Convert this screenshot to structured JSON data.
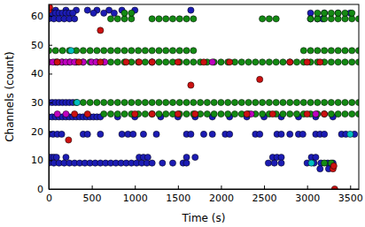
{
  "chart_data": {
    "type": "scatter",
    "x_label": "Time (s)",
    "y_label": "Channels (count)",
    "xlim": [
      0,
      3600
    ],
    "ylim": [
      0,
      64
    ],
    "xticks": [
      0,
      500,
      1000,
      1500,
      2000,
      2500,
      3000,
      3500
    ],
    "yticks": [
      0,
      10,
      20,
      30,
      40,
      50,
      60
    ],
    "grid": false,
    "series": [
      {
        "color": "#1c1cb4",
        "marker": "circle",
        "x": [
          0,
          80,
          200,
          320,
          450,
          560,
          700,
          850,
          1000,
          1650,
          0,
          40,
          80,
          120,
          160,
          200,
          240,
          280,
          520,
          640,
          760,
          3040,
          3200,
          3360,
          3500,
          0,
          60,
          120,
          180,
          240,
          300,
          3040,
          3120,
          3180,
          0,
          40,
          80,
          120,
          160,
          200,
          240,
          280,
          0,
          40,
          80,
          120,
          160,
          200,
          240,
          280,
          320,
          360,
          400,
          440,
          480,
          520,
          560,
          600,
          800,
          1000,
          1300,
          1500,
          1700,
          1900,
          2100,
          2300,
          2500,
          2700,
          2900,
          3100,
          3300,
          0,
          50,
          100,
          150,
          400,
          450,
          600,
          850,
          920,
          980,
          1100,
          1250,
          1600,
          1650,
          1800,
          1900,
          2050,
          2100,
          2400,
          2450,
          2650,
          2700,
          2800,
          2900,
          2950,
          3100,
          3150,
          3200,
          3400,
          3450,
          3550,
          0,
          30,
          60,
          90,
          200,
          1050,
          1100,
          1150,
          1600,
          1700,
          2600,
          2650,
          2700,
          3050,
          3100,
          0,
          60,
          120,
          180,
          240,
          300,
          360,
          420,
          480,
          540,
          600,
          660,
          720,
          780,
          840,
          900,
          960,
          1020,
          1080,
          1140,
          1200,
          1320,
          1440,
          1560,
          1600,
          2550,
          2620,
          2700,
          3000,
          3080,
          3160,
          3240,
          3300,
          3150,
          3250
        ],
        "values": [
          62,
          62,
          62,
          62,
          62,
          62,
          62,
          62,
          62,
          62,
          61,
          61,
          61,
          61,
          61,
          61,
          61,
          61,
          61,
          61,
          61,
          61,
          61,
          61,
          61,
          59,
          59,
          59,
          59,
          59,
          59,
          59,
          59,
          59,
          30,
          30,
          30,
          30,
          30,
          30,
          30,
          30,
          25,
          25,
          25,
          25,
          25,
          25,
          25,
          25,
          25,
          25,
          25,
          25,
          25,
          25,
          25,
          25,
          25,
          25,
          25,
          25,
          25,
          25,
          25,
          25,
          25,
          25,
          25,
          25,
          25,
          19,
          19,
          19,
          19,
          19,
          19,
          19,
          19,
          19,
          19,
          19,
          19,
          19,
          19,
          19,
          19,
          19,
          19,
          19,
          19,
          19,
          19,
          19,
          19,
          19,
          19,
          19,
          19,
          19,
          19,
          19,
          11,
          11,
          11,
          11,
          11,
          11,
          11,
          11,
          11,
          11,
          11,
          11,
          11,
          11,
          11,
          9,
          9,
          9,
          9,
          9,
          9,
          9,
          9,
          9,
          9,
          9,
          9,
          9,
          9,
          9,
          9,
          9,
          9,
          9,
          9,
          9,
          9,
          9,
          9,
          9,
          9,
          9,
          9,
          9,
          9,
          9,
          9,
          9,
          7,
          7
        ]
      },
      {
        "color": "#138a13",
        "marker": "circle",
        "x": [
          0,
          80,
          160,
          240,
          320,
          400,
          480,
          560,
          640,
          720,
          800,
          880,
          960,
          1040,
          1120,
          1200,
          1280,
          1360,
          1440,
          1520,
          1600,
          1680,
          1760,
          1840,
          1920,
          2000,
          2080,
          2160,
          2240,
          2320,
          2400,
          2480,
          2560,
          2640,
          2720,
          2800,
          2880,
          2960,
          3040,
          3120,
          3200,
          3280,
          3360,
          3440,
          3520,
          3600,
          320,
          400,
          480,
          560,
          640,
          720,
          800,
          880,
          960,
          1040,
          1120,
          1200,
          1280,
          1360,
          1440,
          1520,
          1600,
          1680,
          1760,
          1840,
          1920,
          2000,
          2080,
          2160,
          2240,
          2320,
          2400,
          2480,
          2560,
          2640,
          2720,
          2800,
          2880,
          2960,
          3040,
          3120,
          3200,
          3280,
          3360,
          3440,
          3520,
          3600,
          640,
          720,
          800,
          880,
          960,
          1040,
          1120,
          1200,
          1280,
          1360,
          1440,
          1520,
          1600,
          1680,
          1760,
          1840,
          1920,
          2000,
          2080,
          2160,
          2240,
          2320,
          2400,
          2480,
          2560,
          2640,
          2720,
          2800,
          2880,
          2960,
          3040,
          3120,
          3200,
          3280,
          3360,
          3440,
          3520,
          3600,
          0,
          80,
          160,
          240,
          320,
          400,
          480,
          560,
          640,
          720,
          800,
          880,
          960,
          1040,
          1120,
          1200,
          1280,
          1360,
          1440,
          1520,
          1600,
          1680,
          2960,
          3040,
          3120,
          3200,
          3280,
          3360,
          3440,
          3520,
          3600,
          720,
          800,
          880,
          960,
          1200,
          1280,
          1360,
          1440,
          1520,
          1600,
          1680,
          2480,
          2560,
          2640,
          3040,
          3120,
          3200,
          3280,
          3360,
          3440,
          3520,
          3600,
          880,
          960,
          3120,
          3200,
          3280,
          3360,
          3440,
          3520,
          3200,
          3280
        ],
        "values": [
          44,
          44,
          44,
          44,
          44,
          44,
          44,
          44,
          44,
          44,
          44,
          44,
          44,
          44,
          44,
          44,
          44,
          44,
          44,
          44,
          44,
          44,
          44,
          44,
          44,
          44,
          44,
          44,
          44,
          44,
          44,
          44,
          44,
          44,
          44,
          44,
          44,
          44,
          44,
          44,
          44,
          44,
          44,
          44,
          44,
          44,
          30,
          30,
          30,
          30,
          30,
          30,
          30,
          30,
          30,
          30,
          30,
          30,
          30,
          30,
          30,
          30,
          30,
          30,
          30,
          30,
          30,
          30,
          30,
          30,
          30,
          30,
          30,
          30,
          30,
          30,
          30,
          30,
          30,
          30,
          30,
          30,
          30,
          30,
          30,
          30,
          30,
          30,
          26,
          26,
          26,
          26,
          26,
          26,
          26,
          26,
          26,
          26,
          26,
          26,
          26,
          26,
          26,
          26,
          26,
          26,
          26,
          26,
          26,
          26,
          26,
          26,
          26,
          26,
          26,
          26,
          26,
          26,
          26,
          26,
          26,
          26,
          26,
          26,
          26,
          26,
          48,
          48,
          48,
          48,
          48,
          48,
          48,
          48,
          48,
          48,
          48,
          48,
          48,
          48,
          48,
          48,
          48,
          48,
          48,
          48,
          48,
          48,
          48,
          48,
          48,
          48,
          48,
          48,
          48,
          48,
          48,
          59,
          59,
          59,
          59,
          59,
          59,
          59,
          59,
          59,
          59,
          59,
          59,
          59,
          59,
          59,
          59,
          59,
          59,
          59,
          59,
          59,
          59,
          61,
          61,
          61,
          61,
          61,
          61,
          61,
          61,
          9,
          9
        ]
      },
      {
        "color": "#bf00bf",
        "marker": "circle",
        "x": [
          0,
          50,
          100,
          150,
          200,
          250,
          300,
          400,
          500,
          550,
          650,
          1200,
          1900,
          100,
          200,
          2350,
          3100
        ],
        "values": [
          44,
          44,
          44,
          44,
          44,
          44,
          44,
          44,
          44,
          44,
          44,
          44,
          44,
          26,
          26,
          26,
          26
        ]
      },
      {
        "color": "#cc1111",
        "marker": "circle",
        "x": [
          0,
          10,
          600,
          1650,
          2450,
          230,
          3300,
          3310,
          3320,
          100,
          350,
          600,
          900,
          1050,
          1200,
          1500,
          1800,
          2100,
          2800,
          3000,
          3150,
          300,
          450,
          1000,
          1200,
          1500,
          1700,
          2300,
          2600,
          3000,
          3200
        ],
        "values": [
          62,
          63,
          55,
          36,
          38,
          17,
          7,
          8,
          0,
          44,
          44,
          44,
          44,
          44,
          44,
          44,
          44,
          44,
          44,
          44,
          44,
          26,
          26,
          26,
          26,
          26,
          26,
          26,
          26,
          26,
          26
        ]
      },
      {
        "color": "#00bfbf",
        "marker": "circle",
        "x": [
          260,
          330,
          3050,
          3500
        ],
        "values": [
          48,
          30,
          9,
          19
        ]
      }
    ]
  }
}
